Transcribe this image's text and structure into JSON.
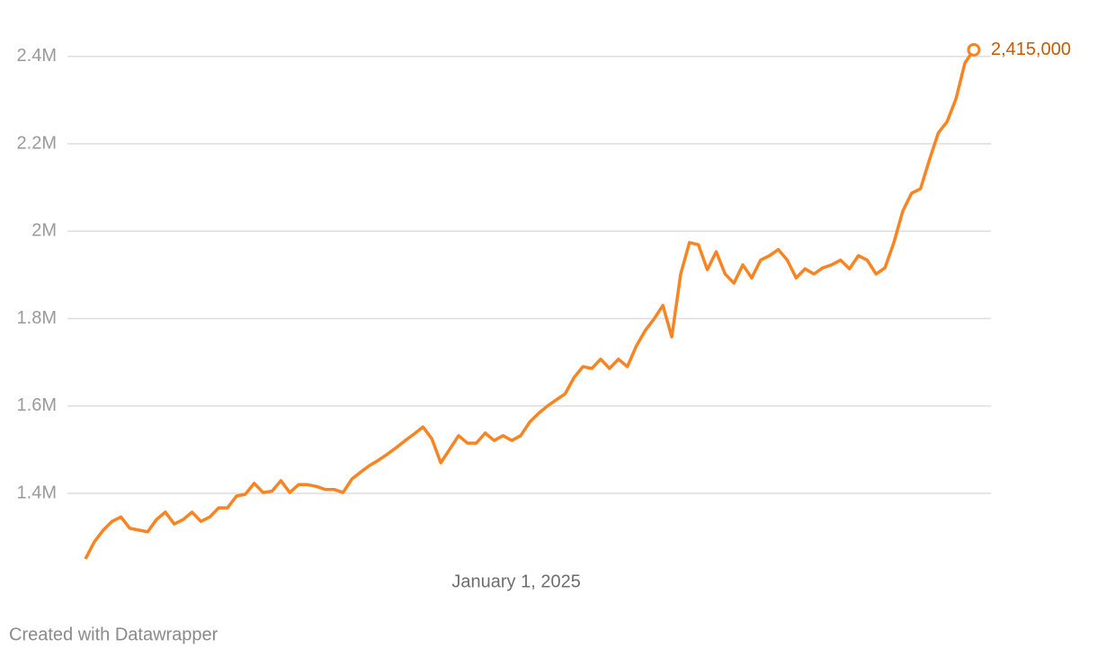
{
  "chart_data": {
    "type": "line",
    "categories": [
      null,
      null,
      null,
      null,
      null,
      null,
      null,
      null,
      null,
      null,
      null,
      null,
      null,
      null,
      null,
      null,
      null,
      null,
      null,
      null,
      null,
      null,
      null,
      null,
      null,
      null,
      null,
      null,
      null,
      null,
      null,
      null,
      null,
      null,
      null,
      null,
      null,
      null,
      null,
      null,
      null,
      null,
      null,
      null,
      null,
      null,
      null,
      null,
      null,
      "January 1, 2025",
      null,
      null,
      null,
      null,
      null,
      null,
      null,
      null,
      null,
      null,
      null,
      null,
      null,
      null,
      null,
      null,
      null,
      null,
      null,
      null,
      null,
      null,
      null,
      null,
      null,
      null,
      null,
      null,
      null,
      null,
      null,
      null,
      null,
      null,
      null,
      null,
      null,
      null,
      null,
      null,
      null,
      null,
      null,
      null,
      null,
      null,
      null,
      null,
      null,
      null,
      null
    ],
    "series": [
      {
        "color": "#fa8322",
        "values": [
          1250000,
          1289000,
          1316000,
          1336000,
          1346000,
          1320000,
          1316000,
          1312000,
          1340000,
          1357000,
          1330000,
          1340000,
          1357000,
          1336000,
          1346000,
          1367000,
          1367000,
          1394000,
          1398000,
          1423000,
          1402000,
          1405000,
          1429000,
          1402000,
          1420000,
          1420000,
          1416000,
          1409000,
          1409000,
          1402000,
          1433000,
          1449000,
          1464000,
          1476000,
          1490000,
          1505000,
          1521000,
          1536000,
          1552000,
          1525000,
          1470000,
          1501000,
          1532000,
          1515000,
          1515000,
          1538000,
          1521000,
          1532000,
          1521000,
          1532000,
          1563000,
          1583000,
          1600000,
          1614000,
          1628000,
          1665000,
          1690000,
          1686000,
          1707000,
          1686000,
          1707000,
          1690000,
          1737000,
          1772000,
          1799000,
          1830000,
          1758000,
          1902000,
          1974000,
          1969000,
          1912000,
          1953000,
          1902000,
          1881000,
          1923000,
          1893000,
          1934000,
          1944000,
          1958000,
          1934000,
          1893000,
          1914000,
          1902000,
          1916000,
          1923000,
          1934000,
          1914000,
          1944000,
          1934000,
          1902000,
          1916000,
          1974000,
          2046000,
          2087000,
          2097000,
          2163000,
          2225000,
          2251000,
          2303000,
          2385000,
          2415000
        ],
        "value_labels": [
          null,
          null,
          null,
          null,
          null,
          null,
          null,
          null,
          null,
          null,
          null,
          null,
          null,
          null,
          null,
          null,
          null,
          null,
          null,
          null,
          null,
          null,
          null,
          null,
          null,
          null,
          null,
          null,
          null,
          null,
          null,
          null,
          null,
          null,
          null,
          null,
          null,
          null,
          null,
          null,
          null,
          null,
          null,
          null,
          null,
          null,
          null,
          null,
          null,
          null,
          null,
          null,
          null,
          null,
          null,
          null,
          null,
          null,
          null,
          null,
          null,
          null,
          null,
          null,
          null,
          null,
          null,
          null,
          null,
          null,
          null,
          null,
          null,
          null,
          null,
          null,
          null,
          null,
          null,
          null,
          null,
          null,
          null,
          null,
          null,
          null,
          null,
          null,
          null,
          null,
          null,
          null,
          null,
          null,
          null,
          null,
          null,
          null,
          null,
          null,
          "2,415,000"
        ],
        "label_color": "#c75a00"
      }
    ],
    "ylim": [
      1230000,
      2490000
    ],
    "yticks": [
      {
        "value": 1400000,
        "label": "1.4M"
      },
      {
        "value": 1600000,
        "label": "1.6M"
      },
      {
        "value": 1800000,
        "label": "1.8M"
      },
      {
        "value": 2000000,
        "label": "2M"
      },
      {
        "value": 2200000,
        "label": "2.2M"
      },
      {
        "value": 2400000,
        "label": "2.4M"
      }
    ],
    "grid": true,
    "footer": "Created with Datawrapper"
  }
}
